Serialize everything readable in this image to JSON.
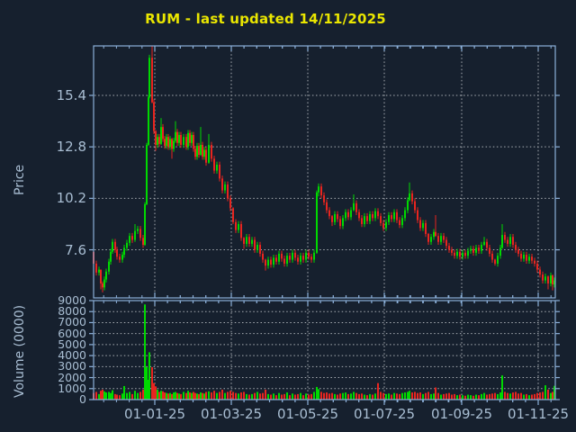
{
  "title": {
    "text": "RUM - last updated 14/11/2025"
  },
  "colors": {
    "background": "#16202e",
    "title": "#eae600",
    "axis_line": "#8cb0d9",
    "grid": "#a9aeb4",
    "tick_label": "#a9bed3",
    "candle_up": "#00d900",
    "candle_down": "#e8251f"
  },
  "chart_data": {
    "type": "candlestick_with_volume",
    "title": "RUM - last updated 14/11/2025",
    "x_axis": {
      "tick_labels": [
        "01-01-25",
        "01-03-25",
        "01-05-25",
        "01-07-25",
        "01-09-25",
        "01-11-25"
      ],
      "tick_x": [
        172,
        257,
        342,
        427,
        513,
        598
      ],
      "minor_tick_step": 14.2
    },
    "price_axis": {
      "label": "Price",
      "tick_values": [
        15.4,
        12.8,
        10.2,
        7.6
      ],
      "min": 5.17,
      "max": 17.9
    },
    "volume_axis": {
      "label": "Volume (0000)",
      "tick_values": [
        9000,
        8000,
        7000,
        6000,
        5000,
        4000,
        3000,
        2000,
        1000,
        0
      ],
      "min": 0,
      "max": 9000
    },
    "default_wick": 0.15,
    "candles_format": "[x_px, open, close, volume, high?, low?]",
    "candles": [
      [
        104,
        7.5,
        6.9,
        600
      ],
      [
        107,
        6.9,
        6.45,
        700
      ],
      [
        110,
        6.45,
        6.6,
        500
      ],
      [
        112,
        6.6,
        5.9,
        800,
        6.6,
        5.6
      ],
      [
        114,
        5.9,
        5.7,
        900,
        6.0,
        5.45
      ],
      [
        116,
        5.7,
        6.1,
        750
      ],
      [
        118,
        6.1,
        6.5,
        650
      ],
      [
        121,
        6.5,
        7.0,
        700
      ],
      [
        123,
        7.0,
        7.5,
        600
      ],
      [
        125,
        7.5,
        8.0,
        850,
        8.15,
        7.4
      ],
      [
        128,
        8.0,
        7.6,
        500
      ],
      [
        130,
        7.6,
        7.25,
        450
      ],
      [
        133,
        7.25,
        7.1,
        400
      ],
      [
        136,
        7.1,
        7.35,
        550
      ],
      [
        138,
        7.35,
        7.7,
        1230
      ],
      [
        141,
        7.7,
        7.95,
        600
      ],
      [
        144,
        7.95,
        8.3,
        700
      ],
      [
        147,
        8.3,
        8.1,
        500
      ],
      [
        150,
        8.1,
        8.55,
        800,
        8.9,
        8.0
      ],
      [
        153,
        8.55,
        8.65,
        600
      ],
      [
        156,
        8.65,
        8.2,
        700
      ],
      [
        159,
        8.2,
        7.85,
        900
      ],
      [
        161,
        7.85,
        9.9,
        8650,
        10.0,
        7.8
      ],
      [
        163,
        9.9,
        12.9,
        2950,
        13.0,
        9.85
      ],
      [
        165,
        12.9,
        15.3,
        1800,
        15.4,
        12.85
      ],
      [
        166,
        15.3,
        17.3,
        4300,
        17.45,
        15.25
      ],
      [
        169,
        17.3,
        15.05,
        2950,
        17.9,
        15.0
      ],
      [
        171,
        15.05,
        13.6,
        1500
      ],
      [
        173,
        13.6,
        12.9,
        1200,
        13.65,
        12.6
      ],
      [
        175,
        12.9,
        13.3,
        900
      ],
      [
        177,
        13.3,
        12.95,
        700
      ],
      [
        179,
        12.95,
        13.8,
        800,
        14.25,
        12.9
      ],
      [
        181,
        13.8,
        13.2,
        750
      ],
      [
        183,
        13.2,
        12.85,
        650
      ],
      [
        185,
        12.85,
        13.3,
        600
      ],
      [
        187,
        13.3,
        12.8,
        550
      ],
      [
        189,
        12.8,
        13.2,
        600
      ],
      [
        191,
        13.2,
        12.7,
        500,
        13.25,
        12.2
      ],
      [
        193,
        12.7,
        13.1,
        650
      ],
      [
        195,
        13.1,
        13.55,
        700,
        14.1,
        13.0
      ],
      [
        197,
        13.55,
        13.0,
        600
      ],
      [
        199,
        13.0,
        13.4,
        550
      ],
      [
        201,
        13.4,
        12.9,
        500
      ],
      [
        204,
        12.9,
        13.3,
        700
      ],
      [
        207,
        13.3,
        12.8,
        600
      ],
      [
        209,
        12.8,
        13.5,
        800
      ],
      [
        211,
        13.5,
        13.0,
        650
      ],
      [
        213,
        13.0,
        13.4,
        600
      ],
      [
        215,
        13.4,
        12.7,
        700
      ],
      [
        217,
        12.7,
        12.3,
        600
      ],
      [
        219,
        12.3,
        12.85,
        550
      ],
      [
        221,
        12.85,
        12.4,
        500
      ],
      [
        223,
        12.4,
        12.9,
        650,
        13.8,
        12.35
      ],
      [
        225,
        12.9,
        12.3,
        600
      ],
      [
        227,
        12.3,
        12.65,
        550
      ],
      [
        229,
        12.65,
        12.0,
        700
      ],
      [
        232,
        12.0,
        12.9,
        750,
        13.45,
        11.95
      ],
      [
        235,
        12.9,
        12.2,
        650
      ],
      [
        238,
        12.2,
        11.6,
        800
      ],
      [
        241,
        11.6,
        11.9,
        600
      ],
      [
        244,
        11.9,
        11.2,
        700
      ],
      [
        247,
        11.2,
        10.6,
        900
      ],
      [
        250,
        10.6,
        10.9,
        600
      ],
      [
        253,
        10.9,
        10.2,
        700
      ],
      [
        256,
        10.2,
        9.7,
        800
      ],
      [
        259,
        9.7,
        9.0,
        700,
        9.75,
        8.9
      ],
      [
        262,
        9.0,
        8.6,
        600
      ],
      [
        265,
        8.6,
        8.9,
        550
      ],
      [
        268,
        8.9,
        8.2,
        650
      ],
      [
        271,
        8.2,
        7.9,
        700,
        8.25,
        7.65
      ],
      [
        274,
        7.9,
        8.25,
        500
      ],
      [
        277,
        8.25,
        7.9,
        450
      ],
      [
        280,
        7.9,
        8.1,
        500
      ],
      [
        283,
        8.1,
        7.6,
        600
      ],
      [
        286,
        7.6,
        7.85,
        700
      ],
      [
        289,
        7.85,
        7.4,
        550
      ],
      [
        292,
        7.4,
        7.1,
        600
      ],
      [
        295,
        7.1,
        6.8,
        900,
        7.15,
        6.55
      ],
      [
        298,
        6.8,
        7.1,
        500
      ],
      [
        301,
        7.1,
        6.85,
        450
      ],
      [
        304,
        6.85,
        7.2,
        550
      ],
      [
        307,
        7.2,
        7.0,
        400
      ],
      [
        310,
        7.0,
        7.4,
        600
      ],
      [
        313,
        7.4,
        7.15,
        450
      ],
      [
        316,
        7.15,
        6.9,
        500
      ],
      [
        319,
        6.9,
        7.3,
        650
      ],
      [
        322,
        7.3,
        7.1,
        400
      ],
      [
        325,
        7.1,
        7.45,
        550
      ],
      [
        328,
        7.45,
        7.2,
        450
      ],
      [
        331,
        7.2,
        7.0,
        500
      ],
      [
        334,
        7.0,
        7.3,
        600
      ],
      [
        337,
        7.3,
        7.1,
        400
      ],
      [
        340,
        7.1,
        7.45,
        550
      ],
      [
        343,
        7.45,
        7.25,
        450
      ],
      [
        346,
        7.25,
        7.1,
        500
      ],
      [
        349,
        7.1,
        7.45,
        700
      ],
      [
        352,
        7.45,
        10.5,
        1150,
        10.6,
        7.4
      ],
      [
        354,
        10.5,
        10.8,
        950,
        10.95,
        10.3
      ],
      [
        357,
        10.8,
        10.35,
        700
      ],
      [
        360,
        10.35,
        10.0,
        600
      ],
      [
        363,
        10.0,
        9.6,
        650
      ],
      [
        366,
        9.6,
        9.3,
        550
      ],
      [
        369,
        9.3,
        9.0,
        600,
        9.35,
        8.8
      ],
      [
        372,
        9.0,
        9.4,
        500
      ],
      [
        375,
        9.4,
        9.15,
        450
      ],
      [
        378,
        9.15,
        8.8,
        550
      ],
      [
        381,
        8.8,
        9.2,
        600
      ],
      [
        384,
        9.2,
        9.5,
        650
      ],
      [
        387,
        9.5,
        9.25,
        500
      ],
      [
        390,
        9.25,
        9.6,
        550
      ],
      [
        393,
        9.6,
        9.95,
        700,
        10.4,
        9.55
      ],
      [
        396,
        9.95,
        9.5,
        600
      ],
      [
        399,
        9.5,
        9.2,
        500
      ],
      [
        402,
        9.2,
        8.9,
        550
      ],
      [
        405,
        8.9,
        9.3,
        450
      ],
      [
        408,
        9.3,
        9.05,
        400
      ],
      [
        411,
        9.05,
        9.4,
        500
      ],
      [
        414,
        9.4,
        9.2,
        450
      ],
      [
        417,
        9.2,
        9.55,
        550
      ],
      [
        420,
        9.55,
        9.3,
        1500
      ],
      [
        423,
        9.3,
        8.95,
        700
      ],
      [
        426,
        8.95,
        8.7,
        600
      ],
      [
        429,
        8.7,
        9.0,
        500
      ],
      [
        432,
        9.0,
        9.35,
        550
      ],
      [
        435,
        9.35,
        9.15,
        450
      ],
      [
        438,
        9.15,
        9.5,
        600
      ],
      [
        441,
        9.5,
        9.1,
        550
      ],
      [
        444,
        9.1,
        8.85,
        500
      ],
      [
        447,
        8.85,
        9.2,
        600
      ],
      [
        450,
        9.2,
        9.6,
        650
      ],
      [
        453,
        9.6,
        10.1,
        700
      ],
      [
        455,
        10.1,
        10.45,
        800,
        11.0,
        10.05
      ],
      [
        458,
        10.45,
        10.05,
        650
      ],
      [
        461,
        10.05,
        9.6,
        700
      ],
      [
        464,
        9.6,
        9.1,
        600
      ],
      [
        467,
        9.1,
        8.7,
        650
      ],
      [
        470,
        8.7,
        8.95,
        500
      ],
      [
        473,
        8.95,
        8.4,
        600
      ],
      [
        476,
        8.4,
        8.0,
        700,
        8.45,
        7.85
      ],
      [
        479,
        8.0,
        8.25,
        500
      ],
      [
        482,
        8.25,
        8.5,
        550
      ],
      [
        484,
        8.5,
        8.3,
        1100,
        9.35,
        8.25
      ],
      [
        487,
        8.3,
        8.0,
        600
      ],
      [
        490,
        8.0,
        8.3,
        450
      ],
      [
        493,
        8.3,
        8.1,
        500
      ],
      [
        496,
        8.1,
        7.8,
        550
      ],
      [
        499,
        7.8,
        7.6,
        600
      ],
      [
        502,
        7.6,
        7.45,
        450
      ],
      [
        505,
        7.45,
        7.3,
        500
      ],
      [
        508,
        7.3,
        7.5,
        400
      ],
      [
        511,
        7.5,
        7.25,
        450
      ],
      [
        514,
        7.25,
        7.45,
        400
      ],
      [
        517,
        7.45,
        7.3,
        350
      ],
      [
        520,
        7.3,
        7.55,
        450
      ],
      [
        523,
        7.55,
        7.65,
        400
      ],
      [
        526,
        7.65,
        7.45,
        350
      ],
      [
        529,
        7.45,
        7.7,
        450
      ],
      [
        532,
        7.7,
        7.55,
        400
      ],
      [
        535,
        7.55,
        7.85,
        500
      ],
      [
        538,
        7.85,
        8.0,
        600,
        8.25,
        7.8
      ],
      [
        541,
        8.0,
        7.7,
        450
      ],
      [
        544,
        7.7,
        7.4,
        500
      ],
      [
        547,
        7.4,
        7.1,
        550
      ],
      [
        550,
        7.1,
        6.9,
        600,
        7.15,
        6.8
      ],
      [
        553,
        6.9,
        7.3,
        500
      ],
      [
        556,
        7.3,
        7.7,
        650
      ],
      [
        558,
        7.7,
        8.35,
        2200,
        8.9,
        7.65
      ],
      [
        561,
        8.35,
        8.1,
        700
      ],
      [
        564,
        8.1,
        7.9,
        600
      ],
      [
        567,
        7.9,
        8.25,
        550
      ],
      [
        570,
        8.25,
        7.85,
        650
      ],
      [
        573,
        7.85,
        7.6,
        700
      ],
      [
        576,
        7.6,
        7.4,
        550
      ],
      [
        579,
        7.4,
        7.15,
        600
      ],
      [
        582,
        7.15,
        7.35,
        450
      ],
      [
        585,
        7.35,
        7.05,
        500
      ],
      [
        588,
        7.05,
        7.25,
        400
      ],
      [
        591,
        7.25,
        7.05,
        450
      ],
      [
        594,
        7.05,
        6.9,
        500
      ],
      [
        597,
        6.9,
        6.6,
        600
      ],
      [
        600,
        6.6,
        6.35,
        650
      ],
      [
        603,
        6.35,
        6.05,
        700
      ],
      [
        606,
        6.05,
        6.25,
        1300
      ],
      [
        609,
        6.25,
        5.9,
        900,
        6.3,
        5.6
      ],
      [
        612,
        5.9,
        6.3,
        600
      ],
      [
        614,
        6.3,
        5.85,
        700,
        6.35,
        5.55
      ],
      [
        616,
        5.85,
        6.05,
        1250
      ]
    ]
  }
}
